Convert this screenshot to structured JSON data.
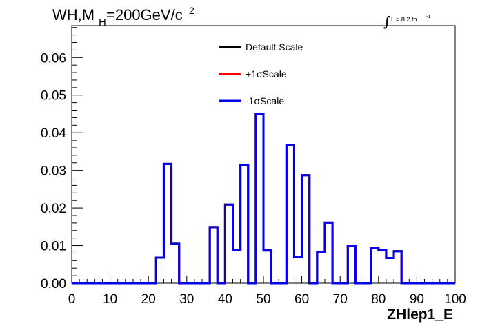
{
  "chart_data": {
    "type": "line",
    "title_main": "WH,M",
    "title_sub": "H",
    "title_rest": "=200GeV/c",
    "title_sup": "2",
    "lumi_text": "L = 8.2 fb",
    "lumi_sup": "-1",
    "xlabel": "ZHlep1_E",
    "ylabel": "",
    "xlim": [
      0,
      100
    ],
    "ylim": [
      0,
      0.0685
    ],
    "x_ticks": [
      "0",
      "10",
      "20",
      "30",
      "40",
      "50",
      "60",
      "70",
      "80",
      "90",
      "100"
    ],
    "y_ticks": [
      "0.00",
      "0.01",
      "0.02",
      "0.03",
      "0.04",
      "0.05",
      "0.06"
    ],
    "grid": false,
    "legend_position": "top-center",
    "bin_edges": [
      0,
      2,
      4,
      6,
      8,
      10,
      12,
      14,
      16,
      18,
      20,
      22,
      24,
      26,
      28,
      30,
      32,
      34,
      36,
      38,
      40,
      42,
      44,
      46,
      48,
      50,
      52,
      54,
      56,
      58,
      60,
      62,
      64,
      66,
      68,
      70,
      72,
      74,
      76,
      78,
      80,
      82,
      84,
      86,
      88,
      90,
      92,
      94,
      96,
      98,
      100
    ],
    "series": [
      {
        "name": "Default Scale",
        "color": "#000000",
        "values": [
          0,
          0,
          0,
          0,
          0,
          0,
          0,
          0,
          0,
          0,
          0,
          0.0068,
          0.0317,
          0.0105,
          0,
          0,
          0,
          0,
          0.0149,
          0.0,
          0.0209,
          0.0089,
          0.0315,
          0,
          0.0449,
          0.0087,
          0,
          0,
          0.0368,
          0.0069,
          0.0287,
          0,
          0.0083,
          0.0161,
          0,
          0,
          0.0099,
          0,
          0,
          0.0094,
          0.0089,
          0.0067,
          0.0085,
          0,
          0,
          0,
          0,
          0,
          0,
          0
        ]
      },
      {
        "name": "+1σScale",
        "color": "#ff0000",
        "values": [
          0,
          0,
          0,
          0,
          0,
          0,
          0,
          0,
          0,
          0,
          0,
          0.0068,
          0.0317,
          0.0105,
          0,
          0,
          0,
          0,
          0.0149,
          0.0,
          0.0209,
          0.0089,
          0.0315,
          0,
          0.0449,
          0.0087,
          0,
          0,
          0.0368,
          0.0069,
          0.0287,
          0,
          0.0083,
          0.0161,
          0,
          0,
          0.0099,
          0,
          0,
          0.0094,
          0.0089,
          0.0067,
          0.0085,
          0,
          0,
          0,
          0,
          0,
          0,
          0
        ]
      },
      {
        "name": "-1σScale",
        "color": "#0000ee",
        "values": [
          0,
          0,
          0,
          0,
          0,
          0,
          0,
          0,
          0,
          0,
          0,
          0.0068,
          0.0317,
          0.0105,
          0,
          0,
          0,
          0,
          0.0149,
          0.0,
          0.0209,
          0.0089,
          0.0315,
          0,
          0.0449,
          0.0087,
          0,
          0,
          0.0368,
          0.0069,
          0.0287,
          0,
          0.0083,
          0.0161,
          0,
          0,
          0.0099,
          0,
          0,
          0.0094,
          0.0089,
          0.0067,
          0.0085,
          0,
          0,
          0,
          0,
          0,
          0,
          0
        ]
      }
    ]
  }
}
